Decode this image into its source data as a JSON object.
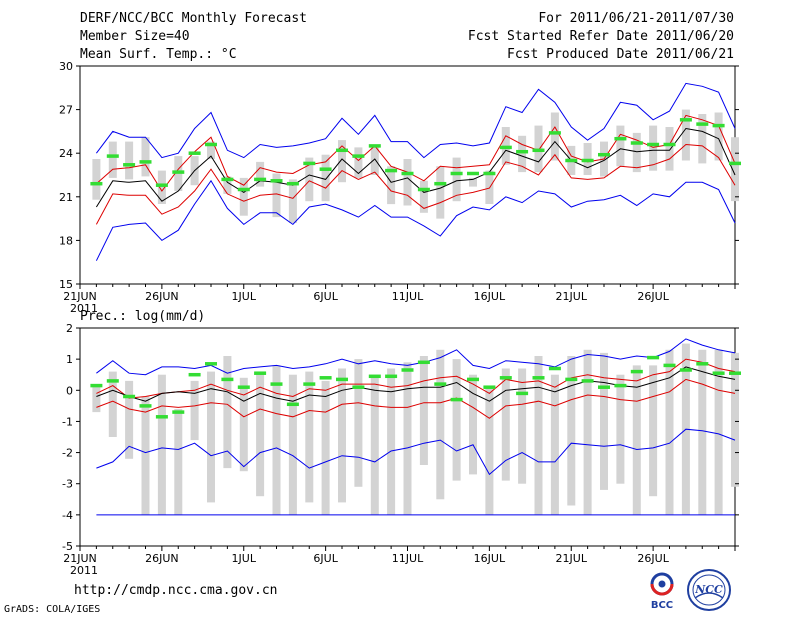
{
  "header": {
    "title": "DERF/NCC/BCC Monthly Forecast",
    "member_size": "Member Size=40",
    "variable_temp": "Mean Surf. Temp.: °C",
    "period": "For 2011/06/21-2011/07/30",
    "started": "Fcst Started Refer Date 2011/06/20",
    "produced": "Fcst Produced Date 2011/06/21"
  },
  "footer": {
    "url": "http://cmdp.ncc.cma.gov.cn",
    "credit": "GrADS: COLA/IGES",
    "logo_bcc": "BCC",
    "logo_ncc": "NCC"
  },
  "colors": {
    "envelope": "#0000ee",
    "spread": "#dd0000",
    "mean": "#000000",
    "bar": "#d3d3d3",
    "point": "#33dd33"
  },
  "chart_data": [
    {
      "type": "line",
      "title": "Mean Surf. Temp.: °C",
      "ylabel": "°C",
      "ylim": [
        15,
        30
      ],
      "yticks": [
        15,
        18,
        21,
        24,
        27,
        30
      ],
      "xlim": [
        0,
        40
      ],
      "x_ticks": [
        {
          "x": 0,
          "label": "21JUN"
        },
        {
          "x": 5,
          "label": "26JUN"
        },
        {
          "x": 10,
          "label": "1JUL"
        },
        {
          "x": 15,
          "label": "6JUL"
        },
        {
          "x": 20,
          "label": "11JUL"
        },
        {
          "x": 25,
          "label": "16JUL"
        },
        {
          "x": 30,
          "label": "21JUL"
        },
        {
          "x": 35,
          "label": "26JUL"
        }
      ],
      "year_label": "2011",
      "x": [
        1,
        2,
        3,
        4,
        5,
        6,
        7,
        8,
        9,
        10,
        11,
        12,
        13,
        14,
        15,
        16,
        17,
        18,
        19,
        20,
        21,
        22,
        23,
        24,
        25,
        26,
        27,
        28,
        29,
        30,
        31,
        32,
        33,
        34,
        35,
        36,
        37,
        38,
        39,
        40
      ],
      "series": [
        {
          "name": "max",
          "role": "envelope",
          "values": [
            24.0,
            25.5,
            25.1,
            25.1,
            23.7,
            24.0,
            25.7,
            26.8,
            24.2,
            23.7,
            24.6,
            24.4,
            24.5,
            24.7,
            25.0,
            26.4,
            25.3,
            26.6,
            24.8,
            24.8,
            23.7,
            24.6,
            24.7,
            24.5,
            24.7,
            27.2,
            26.8,
            28.4,
            27.5,
            25.8,
            24.9,
            25.7,
            27.5,
            27.3,
            26.3,
            26.9,
            28.8,
            28.6,
            28.2,
            25.7
          ]
        },
        {
          "name": "upper",
          "role": "spread",
          "values": [
            21.9,
            22.9,
            23.0,
            23.2,
            21.4,
            22.9,
            24.1,
            25.1,
            22.4,
            21.8,
            23.0,
            22.7,
            22.6,
            23.2,
            23.4,
            24.5,
            23.5,
            24.5,
            23.1,
            22.7,
            22.1,
            23.1,
            23.0,
            23.1,
            23.2,
            25.2,
            24.6,
            24.2,
            25.8,
            23.8,
            23.4,
            23.6,
            25.3,
            24.9,
            24.4,
            24.6,
            26.6,
            26.3,
            25.9,
            23.3
          ]
        },
        {
          "name": "mean",
          "role": "mean",
          "values": [
            20.3,
            22.1,
            22.0,
            22.1,
            20.7,
            21.4,
            22.8,
            23.8,
            22.0,
            21.3,
            22.1,
            22.0,
            21.8,
            22.5,
            22.2,
            23.6,
            22.6,
            23.6,
            22.0,
            22.3,
            21.3,
            21.6,
            22.1,
            22.2,
            22.7,
            24.2,
            23.8,
            23.4,
            24.8,
            23.5,
            23.0,
            23.5,
            24.3,
            24.1,
            24.2,
            24.2,
            25.7,
            25.5,
            25.0,
            22.5
          ]
        },
        {
          "name": "lower",
          "role": "spread",
          "values": [
            19.1,
            21.2,
            21.1,
            21.1,
            19.8,
            20.3,
            21.4,
            22.9,
            21.2,
            20.7,
            21.1,
            21.2,
            20.9,
            22.1,
            21.6,
            22.8,
            22.2,
            22.7,
            21.4,
            21.1,
            20.2,
            20.6,
            21.1,
            21.3,
            21.6,
            23.4,
            23.1,
            22.5,
            23.9,
            22.3,
            22.2,
            22.3,
            23.1,
            23.0,
            23.2,
            23.6,
            24.6,
            24.5,
            23.7,
            21.8
          ]
        },
        {
          "name": "min",
          "role": "envelope",
          "values": [
            16.6,
            18.9,
            19.1,
            19.2,
            18.0,
            18.7,
            20.5,
            22.1,
            20.2,
            19.1,
            19.9,
            19.9,
            19.1,
            20.3,
            20.5,
            20.1,
            19.6,
            20.4,
            19.6,
            19.6,
            19.0,
            18.3,
            19.7,
            20.3,
            20.1,
            21.0,
            20.6,
            21.4,
            21.2,
            20.3,
            20.7,
            20.8,
            21.1,
            20.4,
            21.2,
            21.0,
            22.0,
            22.0,
            21.5,
            19.2
          ]
        },
        {
          "name": "observed",
          "role": "point",
          "values": [
            21.9,
            23.8,
            23.2,
            23.4,
            21.8,
            22.7,
            24.0,
            24.6,
            22.2,
            21.5,
            22.2,
            22.1,
            21.9,
            23.3,
            22.9,
            24.2,
            23.8,
            24.5,
            22.8,
            22.6,
            21.5,
            21.9,
            22.6,
            22.6,
            22.6,
            24.4,
            24.1,
            24.2,
            25.4,
            23.5,
            23.5,
            23.9,
            25.0,
            24.7,
            24.6,
            24.6,
            26.3,
            26.0,
            25.9,
            23.3
          ]
        }
      ],
      "bars": [
        [
          20.8,
          23.6
        ],
        [
          22.3,
          24.8
        ],
        [
          22.2,
          24.8
        ],
        [
          22.4,
          25.1
        ],
        [
          20.5,
          22.8
        ],
        [
          21.4,
          23.8
        ],
        [
          21.8,
          23.8
        ],
        [
          23.6,
          24.8
        ],
        [
          21.2,
          22.4
        ],
        [
          19.7,
          22.3
        ],
        [
          21.7,
          23.4
        ],
        [
          19.6,
          22.6
        ],
        [
          19.2,
          22.2
        ],
        [
          20.7,
          23.7
        ],
        [
          20.7,
          23.9
        ],
        [
          22.0,
          24.9
        ],
        [
          22.3,
          24.4
        ],
        [
          22.5,
          24.5
        ],
        [
          20.5,
          23.1
        ],
        [
          20.4,
          23.6
        ],
        [
          19.9,
          22.1
        ],
        [
          19.5,
          23.1
        ],
        [
          20.7,
          23.7
        ],
        [
          21.7,
          22.3
        ],
        [
          20.5,
          22.8
        ],
        [
          23.2,
          25.8
        ],
        [
          22.7,
          25.2
        ],
        [
          22.7,
          25.9
        ],
        [
          23.5,
          26.8
        ],
        [
          22.5,
          24.5
        ],
        [
          22.5,
          24.7
        ],
        [
          22.4,
          24.8
        ],
        [
          23.1,
          25.9
        ],
        [
          22.7,
          25.4
        ],
        [
          22.8,
          25.9
        ],
        [
          22.8,
          25.8
        ],
        [
          23.5,
          27.0
        ],
        [
          23.3,
          26.7
        ],
        [
          23.5,
          26.8
        ],
        [
          20.7,
          25.1
        ]
      ]
    },
    {
      "type": "line",
      "title": "Prec.: log(mm/d)",
      "ylabel": "log(mm/d)",
      "ylim": [
        -5,
        2
      ],
      "yticks": [
        -5,
        -4,
        -3,
        -2,
        -1,
        0,
        1,
        2
      ],
      "xlim": [
        0,
        40
      ],
      "x_ticks": [
        {
          "x": 0,
          "label": "21JUN"
        },
        {
          "x": 5,
          "label": "26JUN"
        },
        {
          "x": 10,
          "label": "1JUL"
        },
        {
          "x": 15,
          "label": "6JUL"
        },
        {
          "x": 20,
          "label": "11JUL"
        },
        {
          "x": 25,
          "label": "16JUL"
        },
        {
          "x": 30,
          "label": "21JUL"
        },
        {
          "x": 35,
          "label": "26JUL"
        }
      ],
      "year_label": "2011",
      "x": [
        1,
        2,
        3,
        4,
        5,
        6,
        7,
        8,
        9,
        10,
        11,
        12,
        13,
        14,
        15,
        16,
        17,
        18,
        19,
        20,
        21,
        22,
        23,
        24,
        25,
        26,
        27,
        28,
        29,
        30,
        31,
        32,
        33,
        34,
        35,
        36,
        37,
        38,
        39,
        40
      ],
      "series": [
        {
          "name": "max",
          "role": "envelope",
          "values": [
            0.55,
            0.95,
            0.55,
            0.5,
            0.75,
            0.75,
            0.7,
            0.8,
            0.55,
            0.7,
            0.75,
            0.8,
            0.7,
            0.75,
            0.85,
            1.0,
            0.85,
            0.95,
            0.85,
            0.8,
            0.9,
            1.05,
            1.3,
            0.8,
            0.7,
            0.95,
            0.9,
            0.85,
            0.75,
            1.0,
            1.15,
            1.1,
            1.0,
            1.1,
            1.05,
            1.25,
            1.65,
            1.45,
            1.3,
            1.2
          ]
        },
        {
          "name": "upper",
          "role": "spread",
          "values": [
            -0.1,
            0.15,
            -0.25,
            -0.2,
            -0.1,
            -0.05,
            0.0,
            0.2,
            0.0,
            -0.15,
            0.1,
            -0.1,
            -0.2,
            0.05,
            0.0,
            0.2,
            0.2,
            0.2,
            0.1,
            0.15,
            0.3,
            0.4,
            0.45,
            0.2,
            -0.1,
            0.35,
            0.25,
            0.3,
            0.1,
            0.4,
            0.5,
            0.4,
            0.35,
            0.3,
            0.5,
            0.6,
            1.0,
            0.9,
            0.7,
            0.6
          ]
        },
        {
          "name": "mean",
          "role": "mean",
          "values": [
            -0.2,
            0.0,
            -0.2,
            -0.35,
            -0.1,
            -0.05,
            -0.1,
            0.05,
            -0.05,
            -0.35,
            -0.1,
            -0.25,
            -0.35,
            -0.15,
            -0.2,
            0.0,
            0.1,
            0.0,
            -0.05,
            0.05,
            0.1,
            0.1,
            0.25,
            -0.1,
            -0.35,
            0.0,
            0.05,
            0.1,
            -0.05,
            0.15,
            0.3,
            0.25,
            0.15,
            0.1,
            0.25,
            0.4,
            0.75,
            0.6,
            0.45,
            0.35
          ]
        },
        {
          "name": "lower",
          "role": "spread",
          "values": [
            -0.55,
            -0.35,
            -0.6,
            -0.7,
            -0.5,
            -0.55,
            -0.5,
            -0.4,
            -0.45,
            -0.85,
            -0.6,
            -0.75,
            -0.85,
            -0.65,
            -0.7,
            -0.45,
            -0.4,
            -0.5,
            -0.55,
            -0.55,
            -0.4,
            -0.4,
            -0.25,
            -0.55,
            -0.9,
            -0.5,
            -0.45,
            -0.35,
            -0.5,
            -0.3,
            -0.15,
            -0.2,
            -0.3,
            -0.35,
            -0.2,
            -0.05,
            0.35,
            0.2,
            0.0,
            -0.1
          ]
        },
        {
          "name": "min",
          "role": "envelope",
          "values": [
            -2.5,
            -2.3,
            -1.8,
            -2.0,
            -1.85,
            -1.9,
            -1.7,
            -2.1,
            -1.95,
            -2.45,
            -2.0,
            -1.85,
            -2.1,
            -2.5,
            -2.3,
            -2.1,
            -2.15,
            -2.3,
            -1.95,
            -1.85,
            -1.7,
            -1.6,
            -1.95,
            -1.75,
            -2.7,
            -2.25,
            -2.0,
            -2.3,
            -2.3,
            -1.7,
            -1.75,
            -1.8,
            -1.75,
            -1.9,
            -1.85,
            -1.7,
            -1.25,
            -1.3,
            -1.4,
            -1.6
          ]
        },
        {
          "name": "floor",
          "role": "envelope",
          "values": [
            -4,
            -4,
            -4,
            -4,
            -4,
            -4,
            -4,
            -4,
            -4,
            -4,
            -4,
            -4,
            -4,
            -4,
            -4,
            -4,
            -4,
            -4,
            -4,
            -4,
            -4,
            -4,
            -4,
            -4,
            -4,
            -4,
            -4,
            -4,
            -4,
            -4,
            -4,
            -4,
            -4,
            -4,
            -4,
            -4,
            -4,
            -4,
            -4,
            -4
          ]
        },
        {
          "name": "observed",
          "role": "point",
          "values": [
            0.15,
            0.3,
            -0.2,
            -0.5,
            -0.85,
            -0.7,
            0.5,
            0.85,
            0.35,
            0.1,
            0.55,
            0.2,
            -0.45,
            0.2,
            0.4,
            0.35,
            0.1,
            0.45,
            0.45,
            0.65,
            0.9,
            0.2,
            -0.3,
            0.35,
            0.1,
            0.4,
            -0.1,
            0.4,
            0.7,
            0.35,
            0.3,
            0.1,
            0.15,
            0.6,
            1.05,
            0.8,
            0.65,
            0.85,
            0.55,
            0.55
          ]
        }
      ],
      "bars": [
        [
          -0.7,
          0.2
        ],
        [
          -1.5,
          0.6
        ],
        [
          -2.2,
          0.3
        ],
        [
          -4.0,
          -0.2
        ],
        [
          -4.0,
          0.5
        ],
        [
          -4.0,
          -0.6
        ],
        [
          -1.6,
          0.3
        ],
        [
          -3.6,
          0.6
        ],
        [
          -2.5,
          1.1
        ],
        [
          -2.6,
          0.4
        ],
        [
          -3.4,
          0.6
        ],
        [
          -4.0,
          0.8
        ],
        [
          -4.0,
          0.5
        ],
        [
          -3.6,
          0.6
        ],
        [
          -4.0,
          0.3
        ],
        [
          -3.6,
          0.7
        ],
        [
          -3.1,
          1.0
        ],
        [
          -4.0,
          0.5
        ],
        [
          -4.0,
          0.7
        ],
        [
          -4.0,
          0.9
        ],
        [
          -2.4,
          1.1
        ],
        [
          -3.5,
          1.3
        ],
        [
          -2.9,
          1.0
        ],
        [
          -2.7,
          0.5
        ],
        [
          -4.0,
          0.1
        ],
        [
          -2.9,
          0.7
        ],
        [
          -3.0,
          0.7
        ],
        [
          -4.0,
          1.1
        ],
        [
          -4.0,
          0.5
        ],
        [
          -3.7,
          1.1
        ],
        [
          -4.0,
          1.3
        ],
        [
          -3.2,
          1.2
        ],
        [
          -3.0,
          0.5
        ],
        [
          -4.0,
          0.8
        ],
        [
          -3.4,
          0.8
        ],
        [
          -4.0,
          1.3
        ],
        [
          -4.0,
          1.5
        ],
        [
          -4.0,
          1.3
        ],
        [
          -4.0,
          1.3
        ],
        [
          -3.1,
          1.2
        ]
      ]
    }
  ]
}
